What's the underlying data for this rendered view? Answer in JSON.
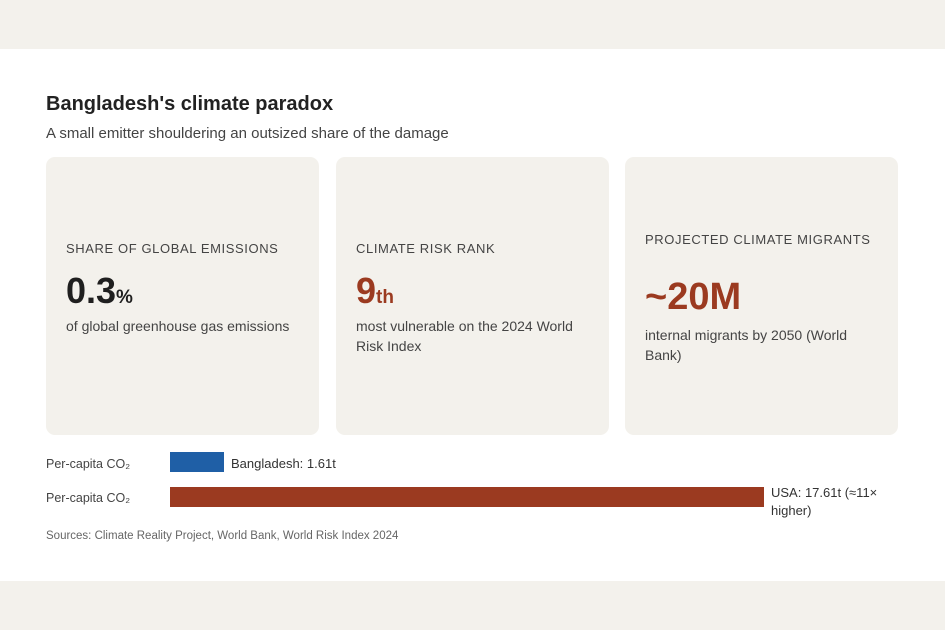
{
  "header": {
    "title": "Bangladesh's climate paradox",
    "subtitle": "A small emitter shouldering an outsized share of the damage"
  },
  "cards": [
    {
      "label": "SHARE OF GLOBAL EMISSIONS",
      "value": "0.3",
      "suffix": "%",
      "description": "of global greenhouse gas emissions",
      "color": "#1f1f1f"
    },
    {
      "label": "CLIMATE RISK RANK",
      "value": "9",
      "suffix": "th",
      "description": "most vulnerable on the 2024 World Risk Index",
      "color": "#9b3a20"
    },
    {
      "label": "PROJECTED CLIMATE MIGRANTS",
      "value": "~20M",
      "suffix": "",
      "description": "internal migrants by 2050 (World Bank)",
      "color": "#9b3a20"
    }
  ],
  "chart_data": {
    "type": "bar",
    "orientation": "horizontal",
    "categories": [
      "Per-capita CO₂",
      "Per-capita CO₂"
    ],
    "values": [
      1.61,
      17.61
    ],
    "units": "t",
    "data_labels": [
      "Bangladesh: 1.61t",
      "USA: 17.61t (≈11× higher)"
    ],
    "colors": [
      "#1f5fa6",
      "#9b3a20"
    ],
    "grid": false
  },
  "footer": {
    "sources": "Sources: Climate Reality Project, World Bank, World Risk Index 2024"
  }
}
